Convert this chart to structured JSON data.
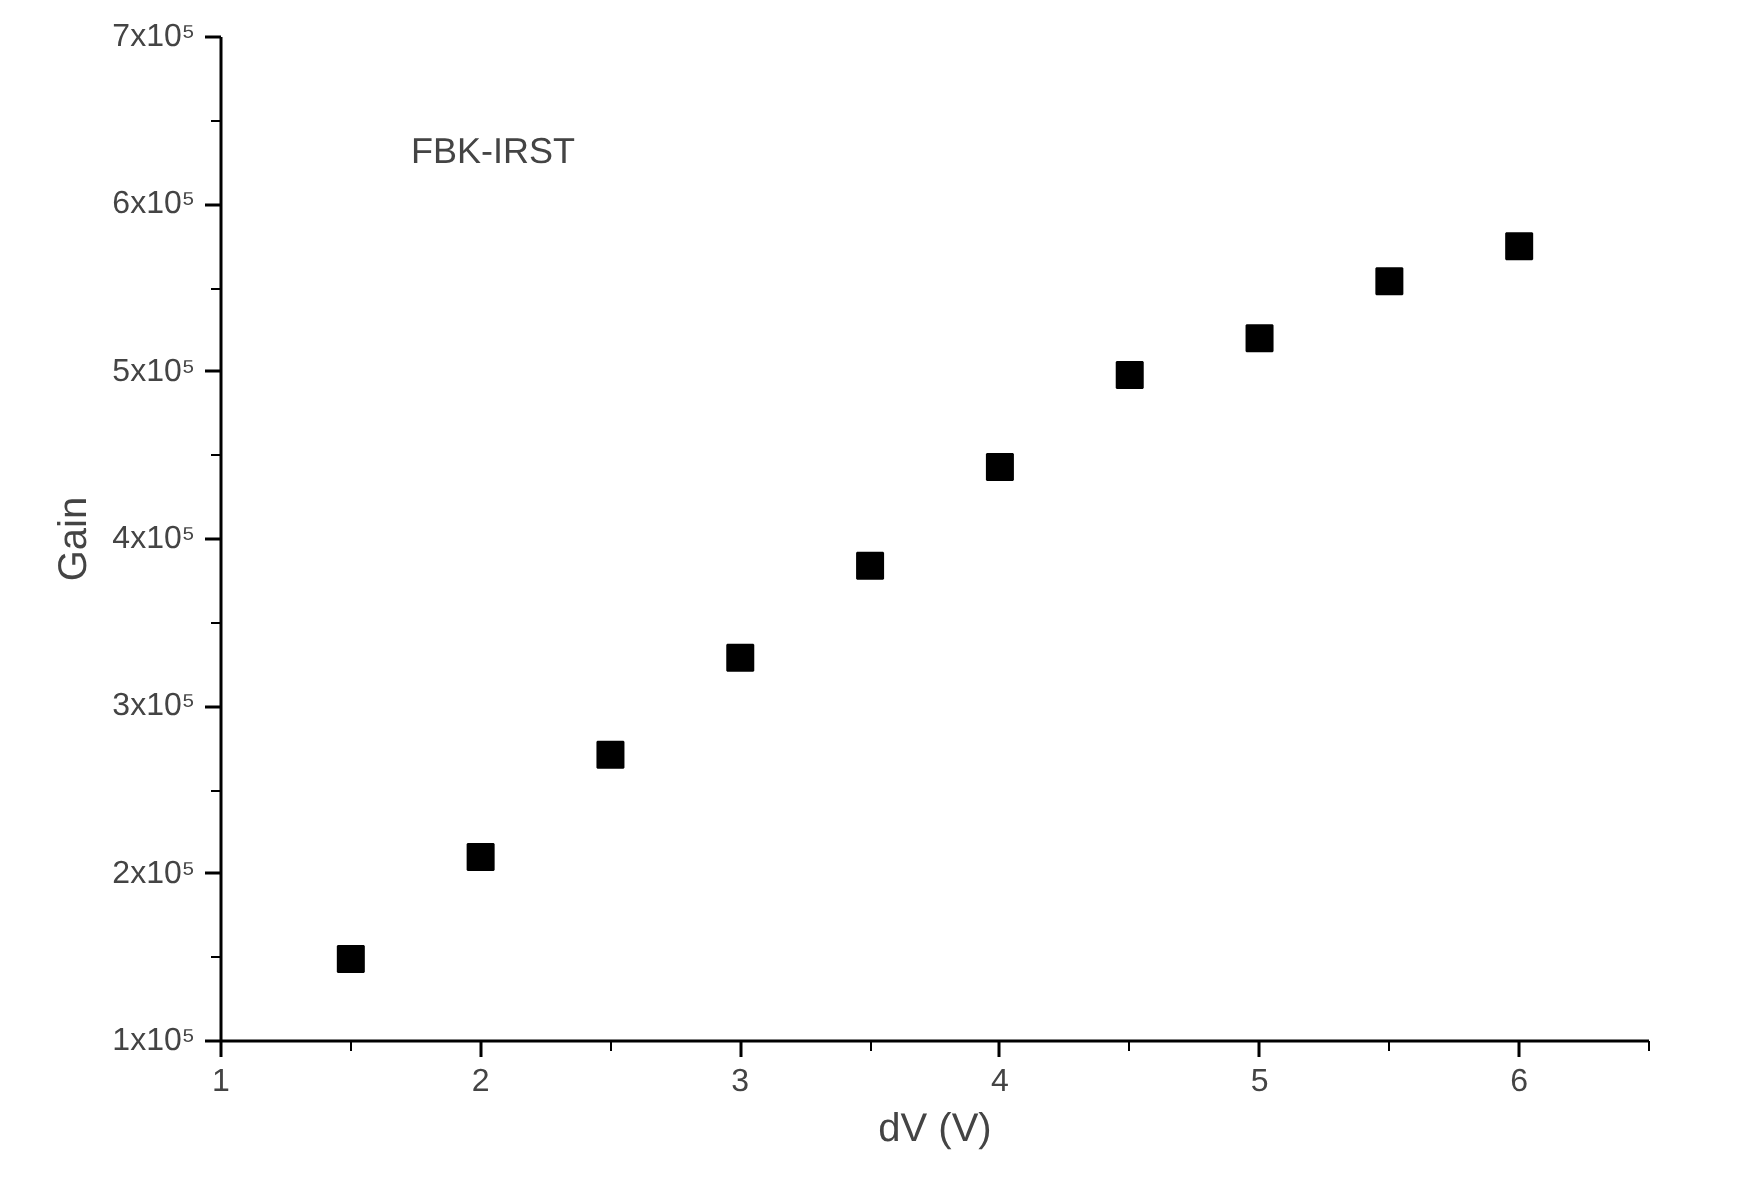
{
  "chart_data": {
    "type": "scatter",
    "xlabel": "dV (V)",
    "ylabel": "Gain",
    "annotations": [
      "FBK-IRST"
    ],
    "x": [
      1.5,
      2,
      2.5,
      3,
      3.5,
      4,
      4.5,
      5,
      5.5,
      6
    ],
    "series": [
      {
        "color": "#000000",
        "values": [
          149000,
          210000,
          271000,
          329000,
          384000,
          443000,
          498000,
          520000,
          554000,
          575000
        ]
      }
    ],
    "marker": "square",
    "grid": false,
    "xlim": [
      1,
      6.5
    ],
    "ylim": [
      100000,
      700000
    ],
    "xticks": [
      1,
      {
        "value": 1.5,
        "label": null
      },
      2,
      {
        "value": 2.5,
        "label": null
      },
      3,
      {
        "value": 3.5,
        "label": null
      },
      4,
      {
        "value": 4.5,
        "label": null
      },
      5,
      {
        "value": 5.5,
        "label": null
      },
      6,
      {
        "value": 6.5,
        "label": null
      }
    ],
    "yticks": [
      {
        "value": 100000,
        "label": "1x10⁵"
      },
      {
        "value": 150000,
        "label": null
      },
      {
        "value": 200000,
        "label": "2x10⁵"
      },
      {
        "value": 250000,
        "label": null
      },
      {
        "value": 300000,
        "label": "3x10⁵"
      },
      {
        "value": 350000,
        "label": null
      },
      {
        "value": 400000,
        "label": "4x10⁵"
      },
      {
        "value": 450000,
        "label": null
      },
      {
        "value": 500000,
        "label": "5x10⁵"
      },
      {
        "value": 550000,
        "label": null
      },
      {
        "value": 600000,
        "label": "6x10⁵"
      },
      {
        "value": 650000,
        "label": null
      },
      {
        "value": 700000,
        "label": "7x10⁵"
      }
    ]
  }
}
